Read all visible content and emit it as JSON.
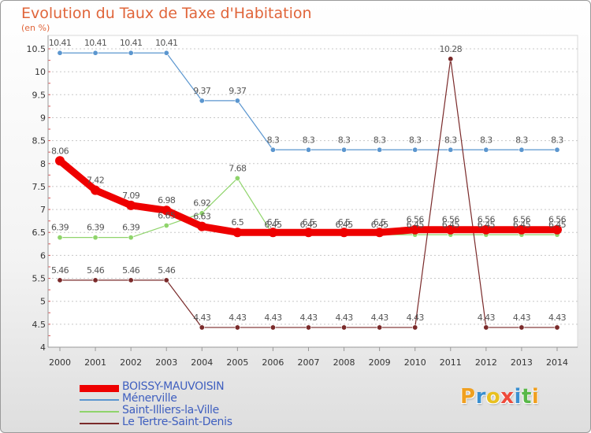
{
  "title": "Evolution du Taux de Taxe d'Habitation",
  "unit_label": "(en %)",
  "logo": {
    "text": "Proxiti",
    "colors": [
      "#f0a020",
      "#3a8fd0",
      "#e8c020",
      "#ee4a3a",
      "#3a8fd0",
      "#58b848",
      "#f0a020"
    ]
  },
  "chart_data": {
    "type": "line",
    "title": "Evolution du Taux de Taxe d'Habitation",
    "ylabel": "(en %)",
    "xlabel": "",
    "x": [
      "2000",
      "2001",
      "2002",
      "2003",
      "2004",
      "2005",
      "2006",
      "2007",
      "2008",
      "2009",
      "2010",
      "2011",
      "2012",
      "2013",
      "2014"
    ],
    "ylim": [
      4,
      10.5
    ],
    "yticks": [
      "4",
      "4.5",
      "5",
      "5.5",
      "6",
      "6.5",
      "7",
      "7.5",
      "8",
      "8.5",
      "9",
      "9.5",
      "10",
      "10.5"
    ],
    "grid": "horizontal-dashed",
    "legend_position": "bottom-left",
    "series": [
      {
        "name": "BOISSY-MAUVOISIN",
        "color": "#ee0000",
        "values": [
          8.06,
          7.42,
          7.09,
          6.98,
          6.63,
          6.5,
          6.5,
          6.5,
          6.5,
          6.5,
          6.56,
          6.56,
          6.56,
          6.56,
          6.56
        ]
      },
      {
        "name": "Ménerville",
        "color": "#5b96cf",
        "values": [
          10.41,
          10.41,
          10.41,
          10.41,
          9.37,
          9.37,
          8.3,
          8.3,
          8.3,
          8.3,
          8.3,
          8.3,
          8.3,
          8.3,
          8.3
        ]
      },
      {
        "name": "Saint-Illiers-la-Ville",
        "color": "#8fd46b",
        "values": [
          6.39,
          6.39,
          6.39,
          6.65,
          6.92,
          7.68,
          6.45,
          6.45,
          6.45,
          6.45,
          6.45,
          6.45,
          6.45,
          6.45,
          6.45
        ]
      },
      {
        "name": "Le Tertre-Saint-Denis",
        "color": "#7a2a2a",
        "values": [
          5.46,
          5.46,
          5.46,
          5.46,
          4.43,
          4.43,
          4.43,
          4.43,
          4.43,
          4.43,
          4.43,
          10.28,
          4.43,
          4.43,
          4.43
        ]
      }
    ]
  }
}
